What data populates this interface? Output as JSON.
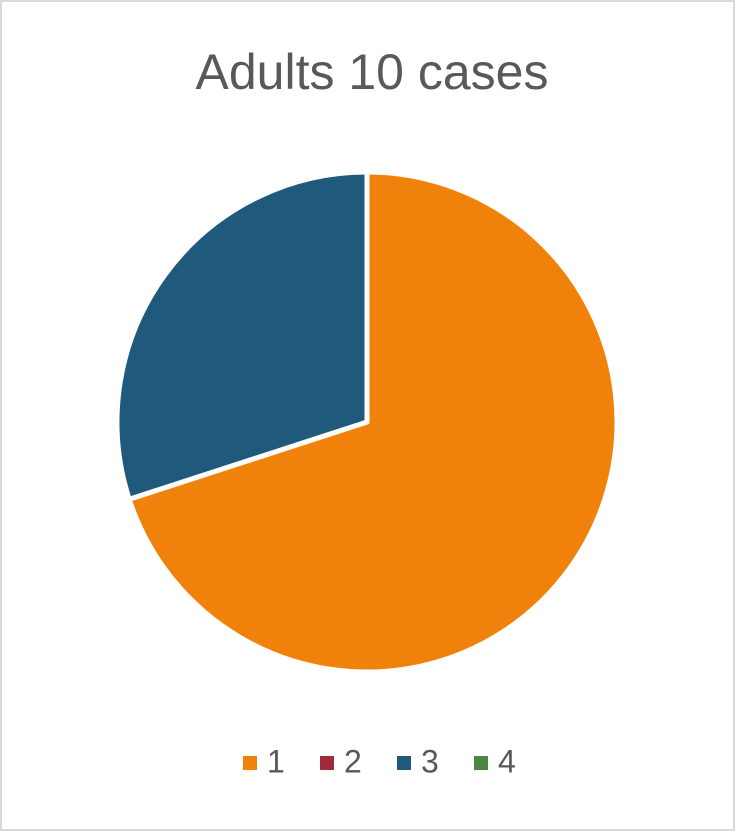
{
  "chart_data": {
    "type": "pie",
    "title": "Adults 10 cases",
    "categories": [
      "1",
      "2",
      "3",
      "4"
    ],
    "values": [
      7,
      0,
      3,
      0
    ],
    "colors": [
      "#f0820c",
      "#a02b3a",
      "#1f5a7c",
      "#4e8542"
    ],
    "legend": "bottom"
  }
}
